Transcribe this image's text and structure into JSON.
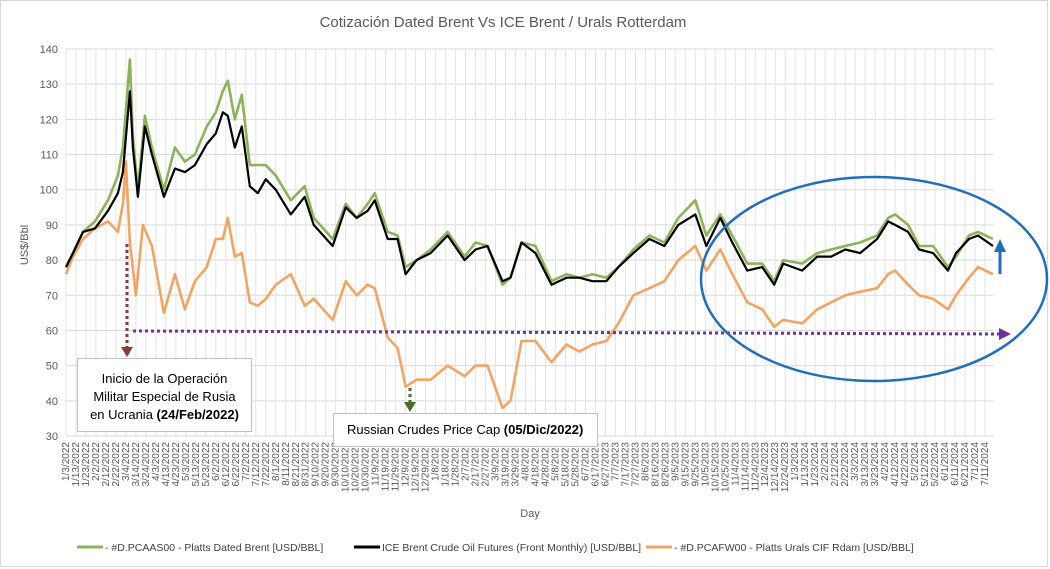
{
  "chart_data": {
    "type": "line",
    "title": "Cotización Dated Brent Vs ICE Brent / Urals Rotterdam",
    "xlabel": "Day",
    "ylabel": "US$/Bbl",
    "ylim": [
      30,
      140
    ],
    "yticks": [
      30,
      40,
      50,
      60,
      70,
      80,
      90,
      100,
      110,
      120,
      130,
      140
    ],
    "grid": true,
    "legend_position": "bottom",
    "x_start": "2022-01-03",
    "x_end": "2024-07-19",
    "xtick_labels": [
      "1/3/2022",
      "1/13/2022",
      "1/23/2022",
      "2/2/2022",
      "2/12/2022",
      "2/22/2022",
      "3/4/2022",
      "3/14/2022",
      "3/24/2022",
      "4/3/2022",
      "4/13/2022",
      "4/23/2022",
      "5/3/2022",
      "5/13/2022",
      "5/23/2022",
      "6/2/2022",
      "6/12/2022",
      "6/22/2022",
      "7/2/2022",
      "7/12/2022",
      "7/22/2022",
      "8/1/2022",
      "8/11/2022",
      "8/21/2022",
      "8/31/2022",
      "9/10/2022",
      "9/20/2022",
      "9/30/2022",
      "10/10/2022",
      "10/20/2022",
      "10/30/2022",
      "11/9/2022",
      "11/19/2022",
      "11/29/2022",
      "12/9/2022",
      "12/19/2022",
      "12/29/2022",
      "1/8/2023",
      "1/18/2023",
      "1/28/2023",
      "2/7/2023",
      "2/17/2023",
      "2/27/2023",
      "3/9/2023",
      "3/19/2023",
      "3/29/2023",
      "4/8/2023",
      "4/18/2023",
      "4/28/2023",
      "5/8/2023",
      "5/18/2023",
      "5/28/2023",
      "6/7/2023",
      "6/17/2023",
      "6/27/2023",
      "7/7/2023",
      "7/17/2023",
      "7/27/2023",
      "8/6/2023",
      "8/16/2023",
      "8/26/2023",
      "9/5/2023",
      "9/15/2023",
      "9/25/2023",
      "10/5/2023",
      "10/15/2023",
      "10/25/2023",
      "11/4/2023",
      "11/14/2023",
      "11/24/2023",
      "12/4/2023",
      "12/14/2023",
      "12/24/2023",
      "1/3/2024",
      "1/13/2024",
      "1/23/2024",
      "2/2/2024",
      "2/12/2024",
      "2/22/2024",
      "3/3/2024",
      "3/13/2024",
      "3/23/2024",
      "4/2/2024",
      "4/12/2024",
      "4/22/2024",
      "5/2/2024",
      "5/12/2024",
      "5/22/2024",
      "6/1/2024",
      "6/11/2024",
      "6/21/2024",
      "7/1/2024",
      "7/11/2024"
    ],
    "series": [
      {
        "name": "- #D.PCAAS00 - Platts Dated Brent [USD/BBL]",
        "color": "#8cb35a",
        "points": [
          [
            "2022-01-03",
            78
          ],
          [
            "2022-01-10",
            82
          ],
          [
            "2022-01-20",
            88
          ],
          [
            "2022-02-01",
            91
          ],
          [
            "2022-02-14",
            97
          ],
          [
            "2022-02-24",
            104
          ],
          [
            "2022-03-01",
            112
          ],
          [
            "2022-03-08",
            137
          ],
          [
            "2022-03-11",
            115
          ],
          [
            "2022-03-16",
            100
          ],
          [
            "2022-03-23",
            121
          ],
          [
            "2022-03-30",
            112
          ],
          [
            "2022-04-11",
            100
          ],
          [
            "2022-04-22",
            112
          ],
          [
            "2022-05-02",
            108
          ],
          [
            "2022-05-12",
            110
          ],
          [
            "2022-05-24",
            118
          ],
          [
            "2022-06-02",
            122
          ],
          [
            "2022-06-09",
            128
          ],
          [
            "2022-06-14",
            131
          ],
          [
            "2022-06-21",
            120
          ],
          [
            "2022-06-28",
            127
          ],
          [
            "2022-07-06",
            107
          ],
          [
            "2022-07-14",
            107
          ],
          [
            "2022-07-22",
            107
          ],
          [
            "2022-08-01",
            104
          ],
          [
            "2022-08-16",
            97
          ],
          [
            "2022-08-30",
            101
          ],
          [
            "2022-09-08",
            92
          ],
          [
            "2022-09-27",
            86
          ],
          [
            "2022-10-10",
            96
          ],
          [
            "2022-10-21",
            92
          ],
          [
            "2022-11-01",
            96
          ],
          [
            "2022-11-08",
            99
          ],
          [
            "2022-11-21",
            88
          ],
          [
            "2022-12-01",
            87
          ],
          [
            "2022-12-09",
            78
          ],
          [
            "2022-12-20",
            80
          ],
          [
            "2023-01-03",
            83
          ],
          [
            "2023-01-20",
            88
          ],
          [
            "2023-02-06",
            81
          ],
          [
            "2023-02-17",
            85
          ],
          [
            "2023-03-01",
            84
          ],
          [
            "2023-03-16",
            73
          ],
          [
            "2023-03-24",
            75
          ],
          [
            "2023-04-04",
            85
          ],
          [
            "2023-04-18",
            84
          ],
          [
            "2023-05-04",
            74
          ],
          [
            "2023-05-19",
            76
          ],
          [
            "2023-06-01",
            75
          ],
          [
            "2023-06-14",
            76
          ],
          [
            "2023-06-28",
            75
          ],
          [
            "2023-07-10",
            78
          ],
          [
            "2023-07-25",
            83
          ],
          [
            "2023-08-10",
            87
          ],
          [
            "2023-08-25",
            85
          ],
          [
            "2023-09-08",
            92
          ],
          [
            "2023-09-25",
            97
          ],
          [
            "2023-10-06",
            87
          ],
          [
            "2023-10-20",
            93
          ],
          [
            "2023-11-01",
            87
          ],
          [
            "2023-11-16",
            79
          ],
          [
            "2023-12-01",
            79
          ],
          [
            "2023-12-13",
            74
          ],
          [
            "2023-12-22",
            80
          ],
          [
            "2024-01-10",
            79
          ],
          [
            "2024-01-25",
            82
          ],
          [
            "2024-02-08",
            83
          ],
          [
            "2024-02-22",
            84
          ],
          [
            "2024-03-08",
            85
          ],
          [
            "2024-03-25",
            87
          ],
          [
            "2024-04-05",
            92
          ],
          [
            "2024-04-12",
            93
          ],
          [
            "2024-04-25",
            90
          ],
          [
            "2024-05-06",
            84
          ],
          [
            "2024-05-20",
            84
          ],
          [
            "2024-06-04",
            78
          ],
          [
            "2024-06-12",
            81
          ],
          [
            "2024-06-25",
            87
          ],
          [
            "2024-07-04",
            88
          ],
          [
            "2024-07-19",
            86
          ]
        ]
      },
      {
        "name": "ICE Brent Crude Oil Futures (Front Monthly) [USD/BBL]",
        "color": "#000000",
        "points": [
          [
            "2022-01-03",
            78
          ],
          [
            "2022-01-10",
            82
          ],
          [
            "2022-01-20",
            88
          ],
          [
            "2022-02-01",
            89
          ],
          [
            "2022-02-14",
            94
          ],
          [
            "2022-02-24",
            99
          ],
          [
            "2022-03-01",
            105
          ],
          [
            "2022-03-08",
            128
          ],
          [
            "2022-03-11",
            112
          ],
          [
            "2022-03-16",
            98
          ],
          [
            "2022-03-23",
            118
          ],
          [
            "2022-03-30",
            110
          ],
          [
            "2022-04-11",
            98
          ],
          [
            "2022-04-22",
            106
          ],
          [
            "2022-05-02",
            105
          ],
          [
            "2022-05-12",
            107
          ],
          [
            "2022-05-24",
            113
          ],
          [
            "2022-06-02",
            116
          ],
          [
            "2022-06-09",
            122
          ],
          [
            "2022-06-14",
            121
          ],
          [
            "2022-06-21",
            112
          ],
          [
            "2022-06-28",
            118
          ],
          [
            "2022-07-06",
            101
          ],
          [
            "2022-07-14",
            99
          ],
          [
            "2022-07-22",
            103
          ],
          [
            "2022-08-01",
            100
          ],
          [
            "2022-08-16",
            93
          ],
          [
            "2022-08-30",
            98
          ],
          [
            "2022-09-08",
            90
          ],
          [
            "2022-09-27",
            84
          ],
          [
            "2022-10-10",
            95
          ],
          [
            "2022-10-21",
            92
          ],
          [
            "2022-11-01",
            94
          ],
          [
            "2022-11-08",
            97
          ],
          [
            "2022-11-21",
            86
          ],
          [
            "2022-12-01",
            86
          ],
          [
            "2022-12-09",
            76
          ],
          [
            "2022-12-20",
            80
          ],
          [
            "2023-01-03",
            82
          ],
          [
            "2023-01-20",
            87
          ],
          [
            "2023-02-06",
            80
          ],
          [
            "2023-02-17",
            83
          ],
          [
            "2023-03-01",
            84
          ],
          [
            "2023-03-16",
            74
          ],
          [
            "2023-03-24",
            75
          ],
          [
            "2023-04-04",
            85
          ],
          [
            "2023-04-18",
            82
          ],
          [
            "2023-05-04",
            73
          ],
          [
            "2023-05-19",
            75
          ],
          [
            "2023-06-01",
            75
          ],
          [
            "2023-06-14",
            74
          ],
          [
            "2023-06-28",
            74
          ],
          [
            "2023-07-10",
            78
          ],
          [
            "2023-07-25",
            82
          ],
          [
            "2023-08-10",
            86
          ],
          [
            "2023-08-25",
            84
          ],
          [
            "2023-09-08",
            90
          ],
          [
            "2023-09-25",
            93
          ],
          [
            "2023-10-06",
            84
          ],
          [
            "2023-10-20",
            92
          ],
          [
            "2023-11-01",
            85
          ],
          [
            "2023-11-16",
            77
          ],
          [
            "2023-12-01",
            78
          ],
          [
            "2023-12-13",
            73
          ],
          [
            "2023-12-22",
            79
          ],
          [
            "2024-01-10",
            77
          ],
          [
            "2024-01-25",
            81
          ],
          [
            "2024-02-08",
            81
          ],
          [
            "2024-02-22",
            83
          ],
          [
            "2024-03-08",
            82
          ],
          [
            "2024-03-25",
            86
          ],
          [
            "2024-04-05",
            91
          ],
          [
            "2024-04-12",
            90
          ],
          [
            "2024-04-25",
            88
          ],
          [
            "2024-05-06",
            83
          ],
          [
            "2024-05-20",
            82
          ],
          [
            "2024-06-04",
            77
          ],
          [
            "2024-06-12",
            82
          ],
          [
            "2024-06-25",
            86
          ],
          [
            "2024-07-04",
            87
          ],
          [
            "2024-07-19",
            84
          ]
        ]
      },
      {
        "name": "- #D.PCAFW00 - Platts Urals CIF Rdam [USD/BBL]",
        "color": "#f4a460",
        "points": [
          [
            "2022-01-03",
            76
          ],
          [
            "2022-01-10",
            81
          ],
          [
            "2022-01-20",
            86
          ],
          [
            "2022-02-01",
            89
          ],
          [
            "2022-02-14",
            91
          ],
          [
            "2022-02-24",
            88
          ],
          [
            "2022-03-01",
            96
          ],
          [
            "2022-03-04",
            108
          ],
          [
            "2022-03-08",
            85
          ],
          [
            "2022-03-14",
            70
          ],
          [
            "2022-03-21",
            90
          ],
          [
            "2022-03-30",
            84
          ],
          [
            "2022-04-11",
            65
          ],
          [
            "2022-04-22",
            76
          ],
          [
            "2022-05-02",
            66
          ],
          [
            "2022-05-12",
            74
          ],
          [
            "2022-05-24",
            78
          ],
          [
            "2022-06-02",
            86
          ],
          [
            "2022-06-09",
            86
          ],
          [
            "2022-06-14",
            92
          ],
          [
            "2022-06-21",
            81
          ],
          [
            "2022-06-28",
            82
          ],
          [
            "2022-07-06",
            68
          ],
          [
            "2022-07-14",
            67
          ],
          [
            "2022-07-22",
            69
          ],
          [
            "2022-08-01",
            73
          ],
          [
            "2022-08-16",
            76
          ],
          [
            "2022-08-30",
            67
          ],
          [
            "2022-09-08",
            69
          ],
          [
            "2022-09-27",
            63
          ],
          [
            "2022-10-10",
            74
          ],
          [
            "2022-10-21",
            70
          ],
          [
            "2022-11-01",
            73
          ],
          [
            "2022-11-08",
            72
          ],
          [
            "2022-11-21",
            58
          ],
          [
            "2022-12-01",
            55
          ],
          [
            "2022-12-09",
            44
          ],
          [
            "2022-12-20",
            46
          ],
          [
            "2023-01-03",
            46
          ],
          [
            "2023-01-20",
            50
          ],
          [
            "2023-02-06",
            47
          ],
          [
            "2023-02-17",
            50
          ],
          [
            "2023-03-01",
            50
          ],
          [
            "2023-03-16",
            38
          ],
          [
            "2023-03-24",
            40
          ],
          [
            "2023-04-04",
            57
          ],
          [
            "2023-04-18",
            57
          ],
          [
            "2023-05-04",
            51
          ],
          [
            "2023-05-19",
            56
          ],
          [
            "2023-06-01",
            54
          ],
          [
            "2023-06-14",
            56
          ],
          [
            "2023-06-28",
            57
          ],
          [
            "2023-07-10",
            62
          ],
          [
            "2023-07-25",
            70
          ],
          [
            "2023-08-10",
            72
          ],
          [
            "2023-08-25",
            74
          ],
          [
            "2023-09-08",
            80
          ],
          [
            "2023-09-25",
            84
          ],
          [
            "2023-10-06",
            77
          ],
          [
            "2023-10-20",
            83
          ],
          [
            "2023-11-01",
            76
          ],
          [
            "2023-11-16",
            68
          ],
          [
            "2023-12-01",
            66
          ],
          [
            "2023-12-13",
            61
          ],
          [
            "2023-12-22",
            63
          ],
          [
            "2024-01-10",
            62
          ],
          [
            "2024-01-25",
            66
          ],
          [
            "2024-02-08",
            68
          ],
          [
            "2024-02-22",
            70
          ],
          [
            "2024-03-08",
            71
          ],
          [
            "2024-03-25",
            72
          ],
          [
            "2024-04-05",
            76
          ],
          [
            "2024-04-12",
            77
          ],
          [
            "2024-04-25",
            73
          ],
          [
            "2024-05-06",
            70
          ],
          [
            "2024-05-20",
            69
          ],
          [
            "2024-06-04",
            66
          ],
          [
            "2024-06-12",
            70
          ],
          [
            "2024-06-25",
            75
          ],
          [
            "2024-07-04",
            78
          ],
          [
            "2024-07-19",
            76
          ]
        ]
      }
    ],
    "annotations": [
      {
        "id": "invasion",
        "lines": [
          "Inicio de la Operación",
          "Militar Especial de Rusia"
        ],
        "line3_prefix": "en Ucrania ",
        "line3_bold": "(24/Feb/2022)"
      },
      {
        "id": "price_cap",
        "prefix": "Russian Crudes Price Cap ",
        "bold": "(05/Dic/2022)"
      }
    ],
    "reference_level": 60
  }
}
